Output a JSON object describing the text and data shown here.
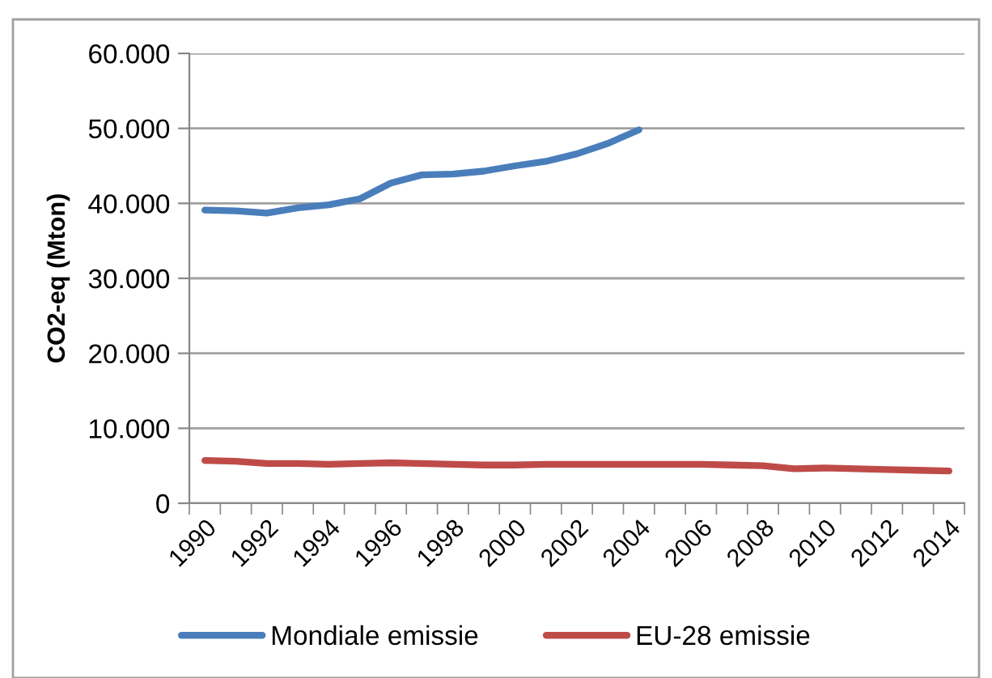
{
  "chart_data": {
    "type": "line",
    "ylabel": "CO2-eq (Mton)",
    "categories": [
      "1990",
      null,
      "1992",
      null,
      "1994",
      null,
      "1996",
      null,
      "1998",
      null,
      "2000",
      null,
      "2002",
      null,
      "2004",
      null,
      "2006",
      null,
      "2008",
      null,
      "2010",
      null,
      "2012",
      null,
      "2014"
    ],
    "series": [
      {
        "name": "Mondiale emissie",
        "color": "#4a7ebb",
        "values": [
          39100,
          39000,
          38700,
          39400,
          39800,
          40600,
          42700,
          43800,
          43900,
          44300,
          45000,
          45600,
          46600,
          48000,
          49800,
          null,
          null,
          null,
          null,
          null,
          null,
          null,
          null,
          null,
          null
        ]
      },
      {
        "name": "EU-28 emissie",
        "color": "#be4b48",
        "values": [
          5700,
          5600,
          5300,
          5300,
          5200,
          5300,
          5400,
          5300,
          5200,
          5100,
          5100,
          5200,
          5200,
          5200,
          5200,
          5200,
          5200,
          5100,
          5000,
          4600,
          4700,
          4600,
          4500,
          4400,
          4300
        ]
      }
    ],
    "ylim": [
      0,
      60000
    ],
    "yticks": [
      0,
      {
        "value": 10000,
        "label": "10.000"
      },
      {
        "value": 20000,
        "label": "20.000"
      },
      {
        "value": 30000,
        "label": "30.000"
      },
      {
        "value": 40000,
        "label": "40.000"
      },
      {
        "value": 50000,
        "label": "50.000"
      },
      {
        "value": 60000,
        "label": "60.000"
      }
    ],
    "grid": "y",
    "legend": "bottom",
    "marker": "none",
    "line_style": "solid"
  }
}
